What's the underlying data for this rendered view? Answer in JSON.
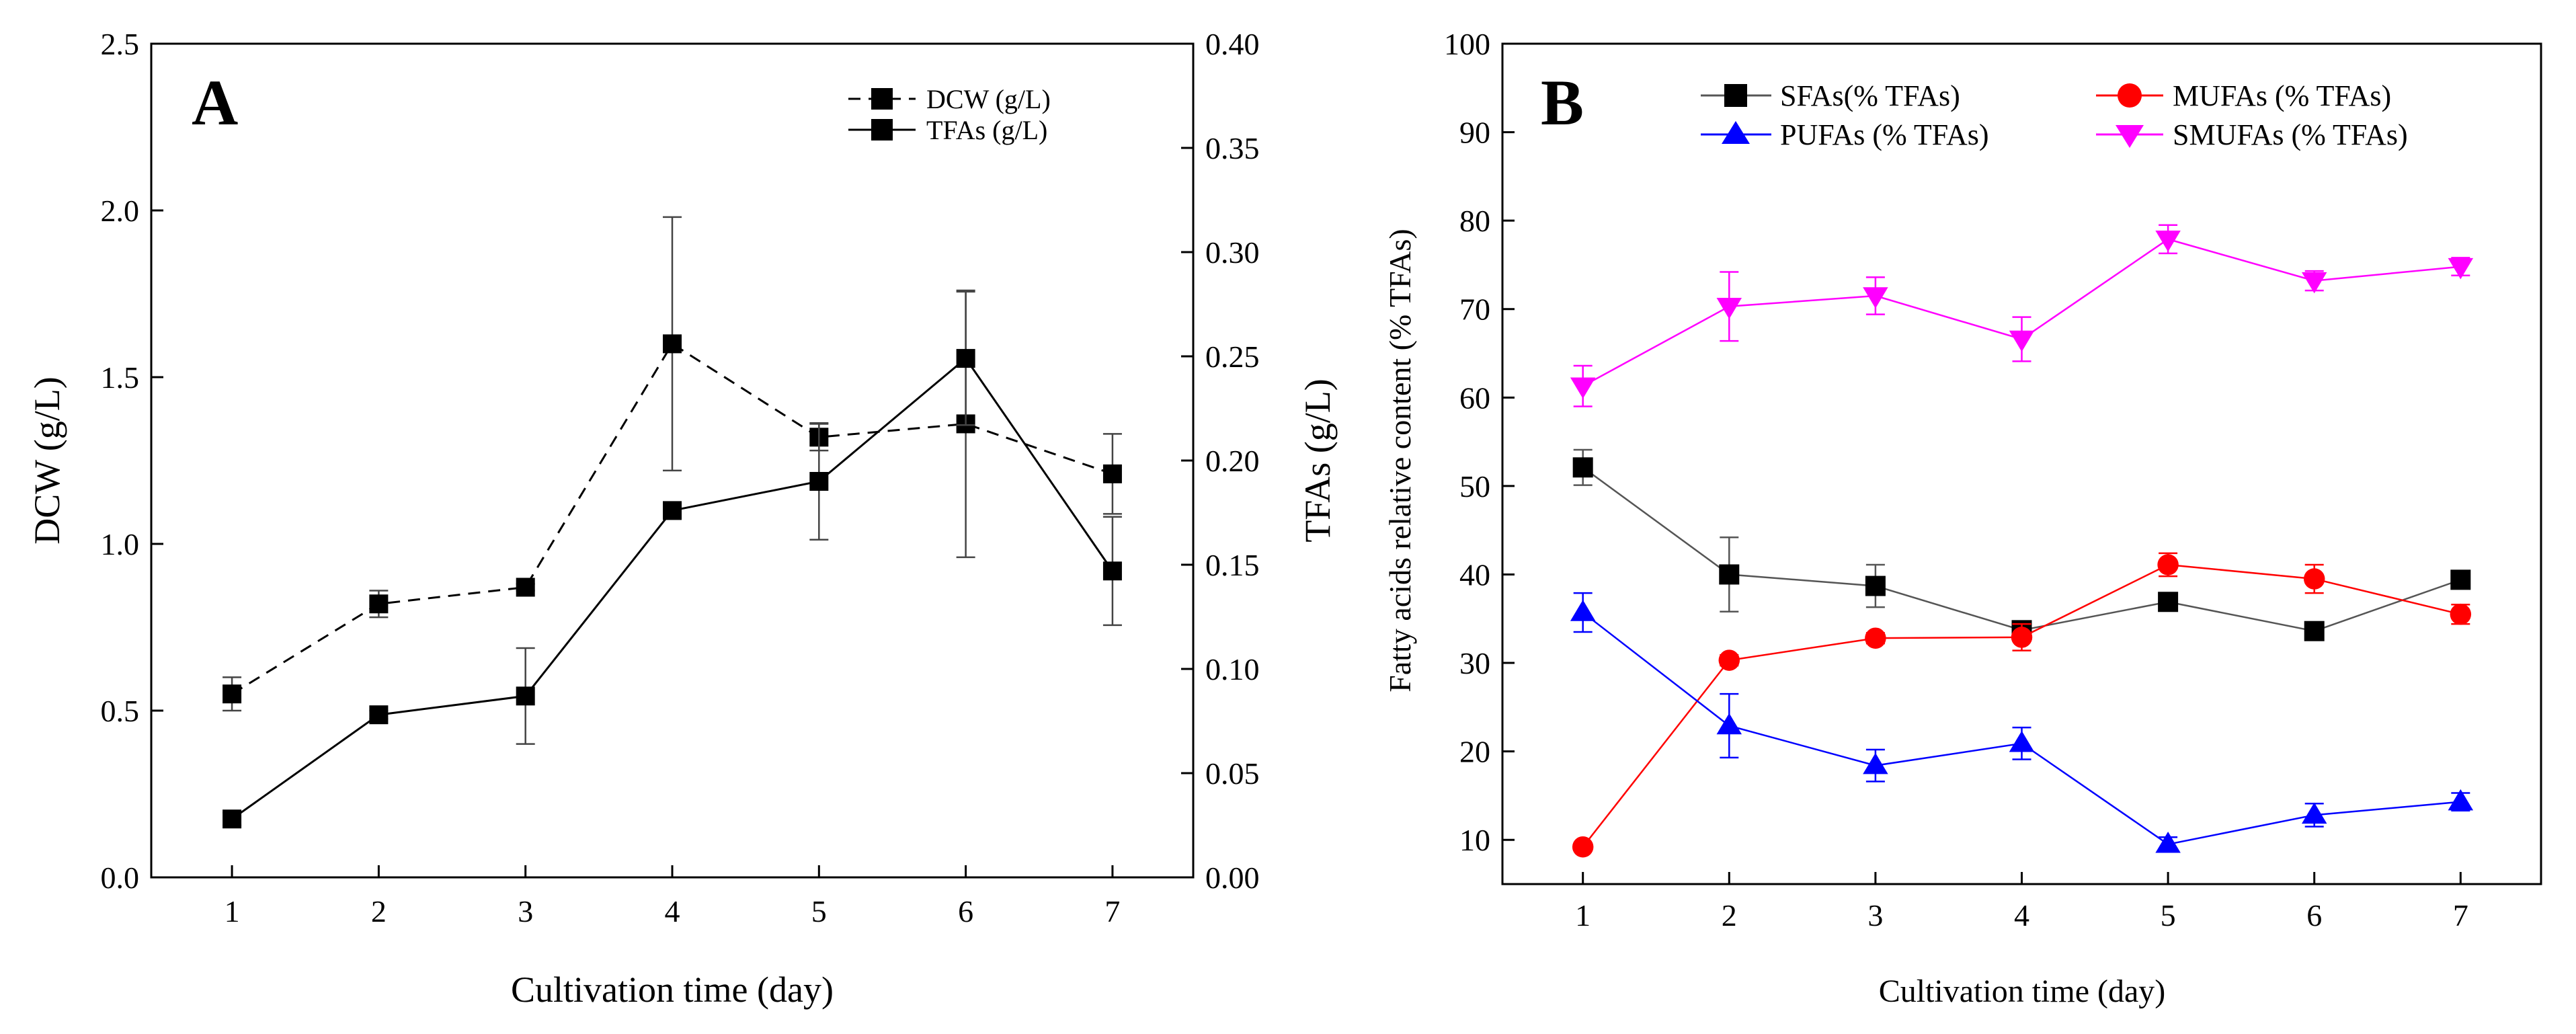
{
  "figure": {
    "panel_a_label": "A",
    "panel_b_label": "B"
  },
  "chart_data": [
    {
      "type": "line",
      "panel": "A",
      "title": "",
      "xlabel": "Cultivation time (day)",
      "ylabel": "DCW (g/L)",
      "y2label": "TFAs (g/L)",
      "x": [
        1,
        2,
        3,
        4,
        5,
        6,
        7
      ],
      "xlim": [
        0.45,
        7.55
      ],
      "ylim": [
        0,
        2.5
      ],
      "y2lim": [
        0,
        0.4
      ],
      "y_ticks": [
        "0.0",
        "0.5",
        "1.0",
        "1.5",
        "2.0",
        "2.5"
      ],
      "y2_ticks": [
        "0.00",
        "0.05",
        "0.10",
        "0.15",
        "0.20",
        "0.25",
        "0.30",
        "0.35",
        "0.40"
      ],
      "x_ticks": [
        "1",
        "2",
        "3",
        "4",
        "5",
        "6",
        "7"
      ],
      "legend_position": "top-right",
      "series": [
        {
          "name": "DCW (g/L)",
          "axis": "left",
          "style": "dashed",
          "color": "#000000",
          "marker": "square",
          "values": [
            0.55,
            0.82,
            0.87,
            1.6,
            1.32,
            1.36,
            1.21
          ],
          "errors": [
            0.05,
            0.04,
            0.01,
            0.38,
            0.04,
            0.4,
            0.12
          ]
        },
        {
          "name": "TFAs (g/L)",
          "axis": "right",
          "style": "solid",
          "color": "#000000",
          "marker": "square",
          "values": [
            0.028,
            0.078,
            0.087,
            0.176,
            0.19,
            0.249,
            0.147
          ],
          "errors": [
            0.003,
            0.002,
            0.023,
            0.002,
            0.028,
            0.032,
            0.026
          ]
        }
      ]
    },
    {
      "type": "line",
      "panel": "B",
      "title": "",
      "xlabel": "Cultivation time (day)",
      "ylabel": "Fatty acids relative content (% TFAs)",
      "x": [
        1,
        2,
        3,
        4,
        5,
        6,
        7
      ],
      "xlim": [
        0.45,
        7.55
      ],
      "ylim": [
        5,
        100
      ],
      "y_ticks": [
        "10",
        "20",
        "30",
        "40",
        "50",
        "60",
        "70",
        "80",
        "90",
        "100"
      ],
      "x_ticks": [
        "1",
        "2",
        "3",
        "4",
        "5",
        "6",
        "7"
      ],
      "legend_position": "top",
      "series": [
        {
          "name": "SFAs(% TFAs)",
          "color": "#000000",
          "line_color": "#555555",
          "marker": "square",
          "values": [
            52.1,
            40.0,
            38.7,
            33.7,
            36.9,
            33.6,
            39.4
          ],
          "errors": [
            2.0,
            4.2,
            2.4,
            0.8,
            0.7,
            0.6,
            0.6
          ]
        },
        {
          "name": "MUFAs (% TFAs)",
          "color": "#ff0000",
          "line_color": "#ff0000",
          "marker": "circle",
          "values": [
            9.2,
            30.3,
            32.8,
            32.9,
            41.1,
            39.5,
            35.5
          ],
          "errors": [
            0.4,
            0.6,
            0.6,
            1.5,
            1.3,
            1.6,
            1.1
          ]
        },
        {
          "name": "PUFAs (% TFAs)",
          "color": "#0000ff",
          "line_color": "#0000ff",
          "marker": "triangle-up",
          "values": [
            35.7,
            22.9,
            18.4,
            20.9,
            9.5,
            12.8,
            14.3
          ],
          "errors": [
            2.2,
            3.6,
            1.8,
            1.8,
            0.8,
            1.3,
            1.0
          ]
        },
        {
          "name": "SMUFAs (% TFAs)",
          "color": "#ff00ff",
          "line_color": "#ff00ff",
          "marker": "triangle-down",
          "values": [
            61.3,
            70.3,
            71.5,
            66.6,
            77.9,
            73.2,
            74.8
          ],
          "errors": [
            2.3,
            3.9,
            2.1,
            2.5,
            1.6,
            1.1,
            1.0
          ]
        }
      ]
    }
  ]
}
